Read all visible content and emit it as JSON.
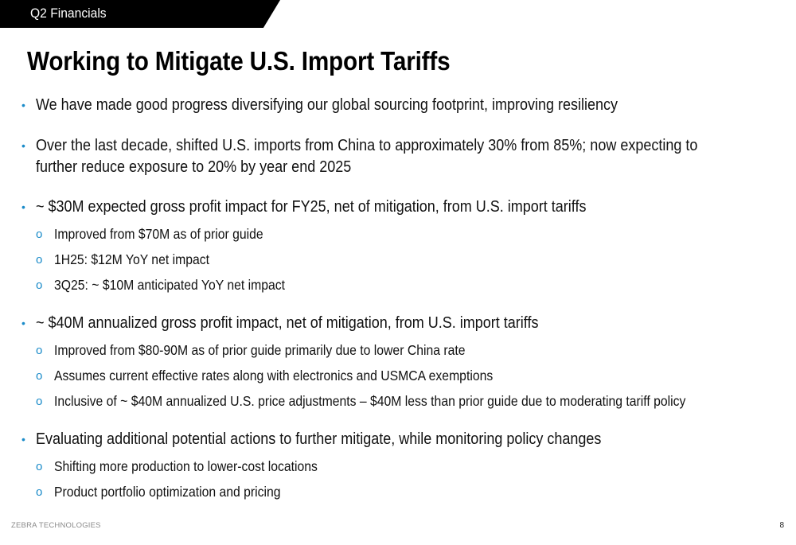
{
  "header": {
    "section_label": "Q2 Financials",
    "title": "Working to Mitigate U.S. Import Tariffs"
  },
  "bullet_marker": "•",
  "sub_bullet_marker": "o",
  "bullets": {
    "b1": "We have made good progress diversifying our global sourcing footprint, improving resiliency",
    "b2_line1": "Over the last decade, shifted U.S. imports from China to approximately 30% from 85%; now expecting to",
    "b2_line2": "further reduce exposure to 20% by year end 2025",
    "b3": "~ $30M expected gross profit impact for FY25, net of mitigation, from U.S. import tariffs",
    "b3_s1": "Improved from $70M as of prior guide",
    "b3_s2": "1H25: $12M YoY net impact",
    "b3_s3": "3Q25: ~ $10M anticipated YoY net impact",
    "b4": "~ $40M annualized gross profit impact, net of mitigation, from U.S. import tariffs",
    "b4_s1": "Improved from $80-90M as of prior guide primarily due to lower China rate",
    "b4_s2": "Assumes current effective rates along with electronics and USMCA exemptions",
    "b4_s3": "Inclusive of ~ $40M annualized U.S. price adjustments – $40M less than prior guide due to moderating tariff policy",
    "b5": "Evaluating additional potential actions to further mitigate, while monitoring policy changes",
    "b5_s1": "Shifting more production to lower-cost locations",
    "b5_s2": "Product portfolio optimization and pricing"
  },
  "footer": {
    "brand": "ZEBRA TECHNOLOGIES",
    "page_number": "8"
  },
  "colors": {
    "accent": "#1a8bc9",
    "tab_background": "#000000"
  }
}
